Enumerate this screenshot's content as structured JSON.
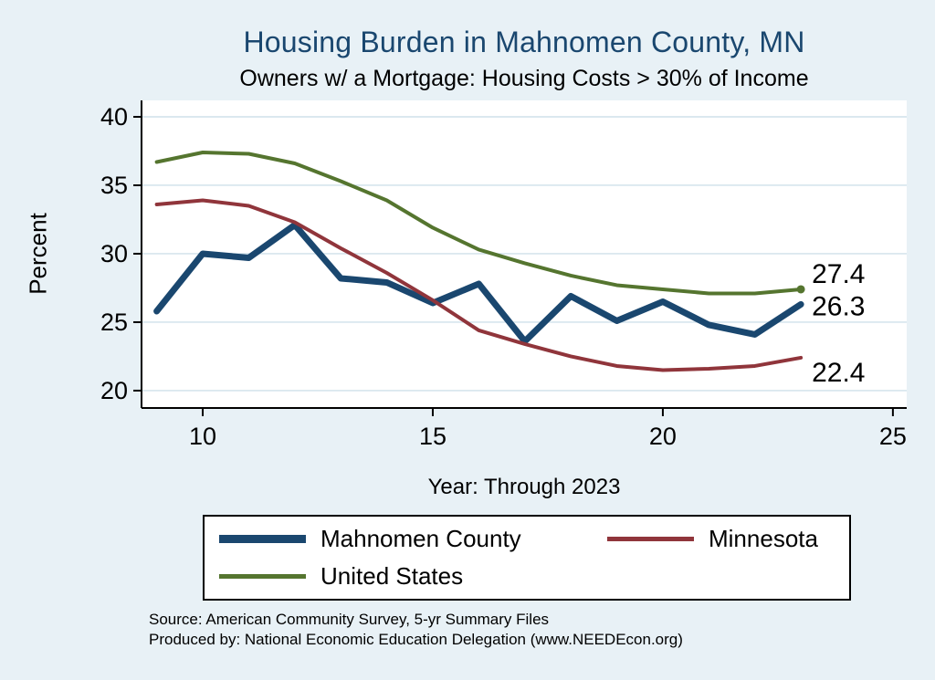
{
  "title": "Housing Burden in Mahnomen County, MN",
  "subtitle": "Owners w/ a Mortgage: Housing Costs > 30% of Income",
  "axes": {
    "ylabel": "Percent",
    "xlabel": "Year: Through 2023"
  },
  "footer": {
    "source": "Source: American Community Survey, 5-yr Summary Files",
    "produced_by": "Produced by: National Economic Education Delegation (www.NEEDEcon.org)"
  },
  "colors": {
    "background": "#e8f1f6",
    "plot_background": "#ffffff",
    "title": "#1a476f",
    "grid": "#cfe0ea",
    "axis": "#000000"
  },
  "end_labels": [
    {
      "series": "United States",
      "text": "27.4"
    },
    {
      "series": "Mahnomen County",
      "text": "26.3"
    },
    {
      "series": "Minnesota",
      "text": "22.4"
    }
  ],
  "chart_data": {
    "type": "line",
    "title": "Housing Burden in Mahnomen County, MN",
    "subtitle": "Owners w/ a Mortgage: Housing Costs > 30% of Income",
    "xlabel": "Year: Through 2023",
    "ylabel": "Percent",
    "x": [
      9,
      10,
      11,
      12,
      13,
      14,
      15,
      16,
      17,
      18,
      19,
      20,
      21,
      22,
      23
    ],
    "series": [
      {
        "name": "Mahnomen County",
        "color": "#1a476f",
        "width": 7,
        "end_marker": false,
        "values": [
          25.8,
          30.0,
          29.7,
          32.1,
          28.2,
          27.9,
          26.4,
          27.8,
          23.6,
          26.9,
          25.1,
          26.5,
          24.8,
          24.1,
          26.3
        ]
      },
      {
        "name": "Minnesota",
        "color": "#90353b",
        "width": 4,
        "end_marker": false,
        "values": [
          33.6,
          33.9,
          33.5,
          32.3,
          30.4,
          28.6,
          26.6,
          24.4,
          23.4,
          22.5,
          21.8,
          21.5,
          21.6,
          21.8,
          22.4
        ]
      },
      {
        "name": "United States",
        "color": "#55752f",
        "width": 4,
        "end_marker": true,
        "values": [
          36.7,
          37.4,
          37.3,
          36.6,
          35.3,
          33.9,
          31.9,
          30.3,
          29.3,
          28.4,
          27.7,
          27.4,
          27.1,
          27.1,
          27.4
        ]
      }
    ],
    "xticks": [
      10,
      15,
      20,
      25
    ],
    "yticks": [
      20,
      25,
      30,
      35,
      40
    ],
    "xlim": [
      8.67,
      25.3
    ],
    "ylim": [
      18.73,
      41.2
    ],
    "grid": true,
    "legend_position": "bottom"
  }
}
